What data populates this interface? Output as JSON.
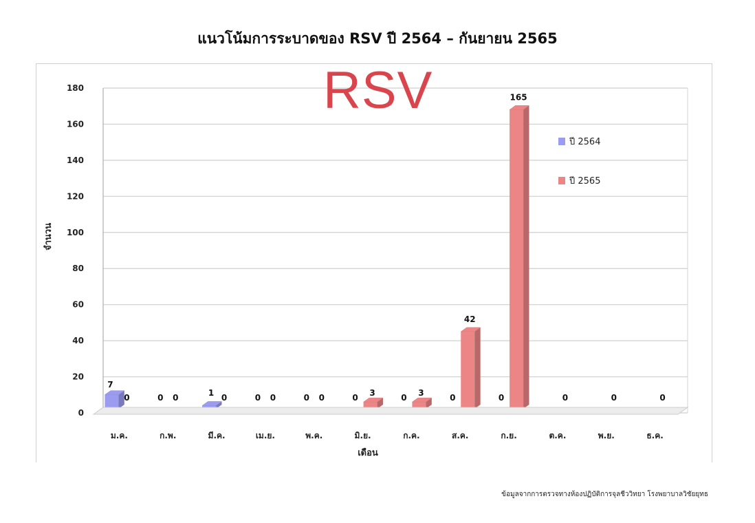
{
  "overlay_label": "RSV",
  "source_note": "ข้อมูลจากการตรวจทางห้องปฏิบัติการจุลชีววิทยา โรงพยาบาลวิชัยยุทธ",
  "colors": {
    "series_2564": "#9b9bf0",
    "series_2565": "#ec8585",
    "overlay": "#d9454c"
  },
  "chart_data": {
    "type": "bar",
    "title": "แนวโน้มการระบาดของ RSV ปี 2564 – กันยายน 2565",
    "xlabel": "เดือน",
    "ylabel": "จำนวน",
    "ylim": [
      0,
      180
    ],
    "yticks": [
      0,
      20,
      40,
      60,
      80,
      100,
      120,
      140,
      160,
      180
    ],
    "grid": true,
    "legend_position": "right",
    "categories": [
      "ม.ค.",
      "ก.พ.",
      "มี.ค.",
      "เม.ย.",
      "พ.ค.",
      "มิ.ย.",
      "ก.ค.",
      "ส.ค.",
      "ก.ย.",
      "ต.ค.",
      "พ.ย.",
      "ธ.ค."
    ],
    "series": [
      {
        "name": "ปี 2564",
        "values": [
          7,
          0,
          1,
          0,
          0,
          0,
          0,
          0,
          0,
          null,
          null,
          null
        ],
        "data_labels": [
          "7",
          "0",
          "1",
          "0",
          "0",
          "0",
          "0",
          "0",
          "0",
          "",
          "",
          ""
        ]
      },
      {
        "name": "ปี 2565",
        "values": [
          0,
          0,
          0,
          0,
          0,
          3,
          3,
          42,
          165,
          0,
          0,
          0
        ],
        "data_labels": [
          "0",
          "0",
          "0",
          "0",
          "0",
          "3",
          "3",
          "42",
          "165",
          "0",
          "0",
          "0"
        ]
      }
    ],
    "annotations": [
      "7"
    ]
  }
}
